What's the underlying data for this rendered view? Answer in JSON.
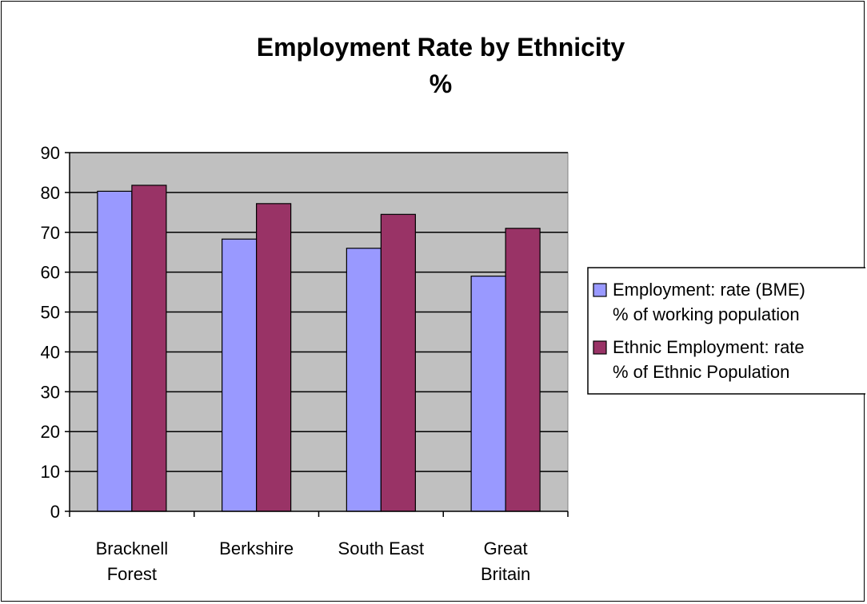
{
  "chart_data": {
    "type": "bar",
    "title_lines": [
      "Employment Rate by Ethnicity",
      "%"
    ],
    "categories": [
      [
        "Bracknell",
        "Forest"
      ],
      [
        "Berkshire"
      ],
      [
        "South East"
      ],
      [
        "Great",
        "Britain"
      ]
    ],
    "series": [
      {
        "name_lines": [
          "Employment: rate (BME)",
          "% of working population"
        ],
        "color": "#9999FF",
        "values": [
          80.3,
          68.3,
          66.0,
          59.0
        ]
      },
      {
        "name_lines": [
          "Ethnic Employment: rate",
          "% of Ethnic Population"
        ],
        "color": "#993366",
        "values": [
          81.8,
          77.2,
          74.5,
          71.0
        ]
      }
    ],
    "ylim": [
      0,
      90
    ],
    "yticks": [
      "0",
      "10",
      "20",
      "30",
      "40",
      "50",
      "60",
      "70",
      "80",
      "90"
    ],
    "plot_background": "#C0C0C0",
    "grid": true,
    "legend_position": "right"
  }
}
